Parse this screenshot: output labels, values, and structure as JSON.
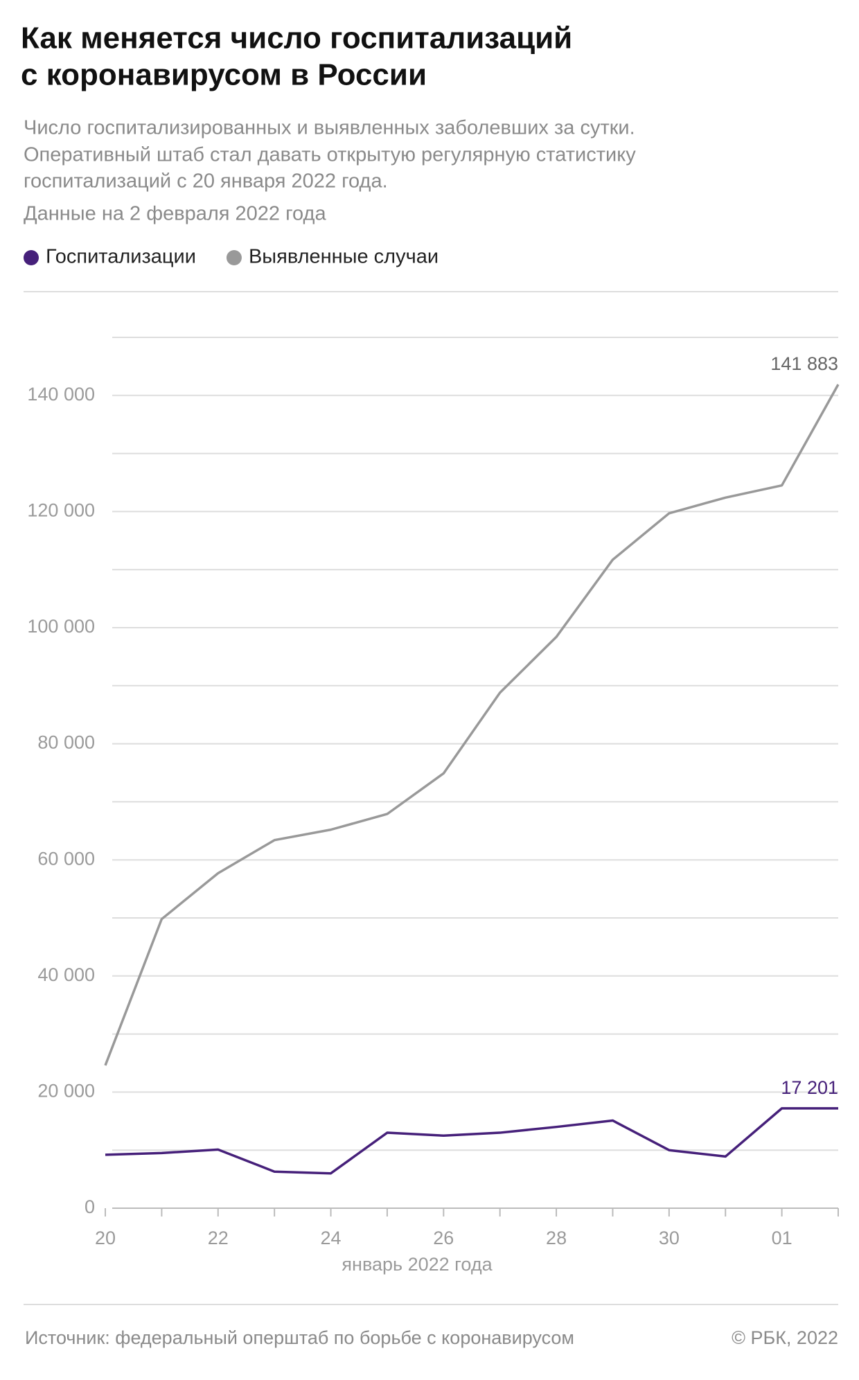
{
  "chart_data": {
    "type": "line",
    "title": [
      "Как меняется число госпитализаций",
      "с коронавирусом в России"
    ],
    "subtitle": [
      "Число госпитализированных и выявленных заболевших за сутки.",
      "Оперативный штаб стал давать открытую регулярную статистику",
      "госпитализаций с 20 января 2022 года."
    ],
    "note": "Данные на 2 февраля 2022 года",
    "x_label": "январь 2022 года",
    "source": "Источник: федеральный оперштаб по борьбе с коронавирусом",
    "credit": "© РБК, 2022",
    "categories": [
      "20",
      null,
      "22",
      null,
      "24",
      null,
      "26",
      null,
      "28",
      null,
      "30",
      null,
      "01",
      null
    ],
    "series": [
      {
        "name": "Госпитализации",
        "color": "#46207a",
        "values": [
          9200,
          9500,
          10100,
          6300,
          6000,
          13000,
          12500,
          13000,
          14000,
          15100,
          10000,
          8900,
          17200,
          17201
        ],
        "value_labels": [
          null,
          null,
          null,
          null,
          null,
          null,
          null,
          null,
          null,
          null,
          null,
          null,
          null,
          "17 201"
        ]
      },
      {
        "name": "Выявленные случаи",
        "color": "#999999",
        "values": [
          24600,
          49800,
          57700,
          63400,
          65200,
          67900,
          74900,
          88800,
          98400,
          111700,
          119700,
          122400,
          124500,
          141883
        ],
        "value_labels": [
          null,
          null,
          null,
          null,
          null,
          null,
          null,
          null,
          null,
          null,
          null,
          null,
          null,
          "141 883"
        ]
      }
    ],
    "ylim": [
      0,
      150000
    ],
    "yticks": [
      0,
      {
        "value": 20000,
        "label": "20 000"
      },
      {
        "value": 40000,
        "label": "40 000"
      },
      {
        "value": 60000,
        "label": "60 000"
      },
      {
        "value": 80000,
        "label": "80 000"
      },
      {
        "value": 100000,
        "label": "100 000"
      },
      {
        "value": 120000,
        "label": "120 000"
      },
      {
        "value": 140000,
        "label": "140 000"
      }
    ],
    "minor_yticks": [
      10000,
      30000,
      50000,
      70000,
      90000,
      110000,
      130000,
      150000
    ],
    "grid": true
  }
}
